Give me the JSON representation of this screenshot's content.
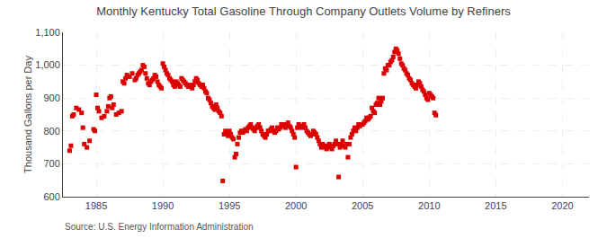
{
  "chart_data": {
    "type": "scatter",
    "title": "Monthly Kentucky Total Gasoline Through Company Outlets Volume by Refiners",
    "ylabel": "Thousand Gallons per Day",
    "annotations": [
      "Source: U.S. Energy Information Administration"
    ],
    "color": "#dd0000",
    "marker": "square",
    "grid": true,
    "xlim": [
      1982.5,
      2022
    ],
    "ylim": [
      600,
      1100
    ],
    "xticks": [
      1985,
      1990,
      1995,
      2000,
      2005,
      2010,
      2015,
      2020
    ],
    "yticks": [
      600,
      700,
      800,
      900,
      {
        "value": 1000,
        "label": "1,000"
      },
      {
        "value": 1100,
        "label": "1,100"
      }
    ],
    "x": [
      1983.0,
      1983.1,
      1983.2,
      1983.3,
      1983.5,
      1983.7,
      1983.9,
      1984.0,
      1984.1,
      1984.3,
      1984.5,
      1984.8,
      1984.9,
      1985.0,
      1985.1,
      1985.2,
      1985.4,
      1985.6,
      1985.8,
      1985.9,
      1986.0,
      1986.1,
      1986.2,
      1986.3,
      1986.5,
      1986.7,
      1986.9,
      1987.0,
      1987.1,
      1987.2,
      1987.3,
      1987.5,
      1987.7,
      1987.9,
      1988.0,
      1988.1,
      1988.2,
      1988.3,
      1988.4,
      1988.5,
      1988.6,
      1988.7,
      1988.8,
      1988.9,
      1989.0,
      1989.1,
      1989.2,
      1989.3,
      1989.4,
      1989.5,
      1989.6,
      1989.7,
      1989.8,
      1989.9,
      1990.0,
      1990.1,
      1990.2,
      1990.3,
      1990.4,
      1990.5,
      1990.6,
      1990.7,
      1990.8,
      1990.9,
      1991.0,
      1991.1,
      1991.2,
      1991.3,
      1991.4,
      1991.5,
      1991.6,
      1991.7,
      1991.8,
      1991.9,
      1992.0,
      1992.1,
      1992.2,
      1992.3,
      1992.4,
      1992.5,
      1992.6,
      1992.7,
      1992.8,
      1992.9,
      1993.0,
      1993.1,
      1993.2,
      1993.3,
      1993.4,
      1993.5,
      1993.6,
      1993.7,
      1993.8,
      1993.9,
      1994.0,
      1994.1,
      1994.2,
      1994.3,
      1994.4,
      1994.5,
      1994.6,
      1994.7,
      1994.8,
      1994.9,
      1995.0,
      1995.1,
      1995.2,
      1995.3,
      1995.4,
      1995.5,
      1995.6,
      1995.7,
      1995.8,
      1995.9,
      1996.0,
      1996.1,
      1996.2,
      1996.3,
      1996.4,
      1996.5,
      1996.6,
      1996.7,
      1996.8,
      1996.9,
      1997.0,
      1997.1,
      1997.2,
      1997.3,
      1997.4,
      1997.5,
      1997.6,
      1997.7,
      1997.8,
      1997.9,
      1998.0,
      1998.1,
      1998.2,
      1998.3,
      1998.4,
      1998.5,
      1998.6,
      1998.7,
      1998.8,
      1998.9,
      1999.0,
      1999.1,
      1999.2,
      1999.3,
      1999.4,
      1999.5,
      1999.6,
      1999.7,
      1999.8,
      1999.9,
      2000.0,
      2000.1,
      2000.2,
      2000.3,
      2000.4,
      2000.5,
      2000.6,
      2000.7,
      2000.8,
      2000.9,
      2001.0,
      2001.1,
      2001.2,
      2001.3,
      2001.4,
      2001.5,
      2001.6,
      2001.7,
      2001.8,
      2001.9,
      2002.0,
      2002.1,
      2002.2,
      2002.3,
      2002.4,
      2002.5,
      2002.6,
      2002.7,
      2002.8,
      2002.9,
      2003.0,
      2003.1,
      2003.2,
      2003.3,
      2003.4,
      2003.5,
      2003.6,
      2003.7,
      2003.8,
      2003.9,
      2004.0,
      2004.1,
      2004.2,
      2004.3,
      2004.4,
      2004.5,
      2004.6,
      2004.7,
      2004.8,
      2004.9,
      2005.0,
      2005.1,
      2005.2,
      2005.3,
      2005.4,
      2005.5,
      2005.6,
      2005.7,
      2005.8,
      2005.9,
      2006.0,
      2006.1,
      2006.2,
      2006.3,
      2006.4,
      2006.5,
      2006.6,
      2006.7,
      2006.8,
      2006.9,
      2007.0,
      2007.1,
      2007.2,
      2007.3,
      2007.4,
      2007.5,
      2007.6,
      2007.7,
      2007.8,
      2007.9,
      2008.0,
      2008.1,
      2008.2,
      2008.3,
      2008.4,
      2008.5,
      2008.6,
      2008.7,
      2008.8,
      2008.9,
      2009.0,
      2009.1,
      2009.2,
      2009.3,
      2009.4,
      2009.5,
      2009.6,
      2009.7,
      2009.8,
      2009.9,
      2010.0,
      2010.1,
      2010.2,
      2010.3,
      2010.4,
      2010.5
    ],
    "values": [
      740,
      755,
      845,
      850,
      870,
      865,
      855,
      810,
      760,
      750,
      770,
      805,
      800,
      910,
      870,
      860,
      840,
      845,
      860,
      875,
      900,
      905,
      870,
      880,
      850,
      855,
      860,
      950,
      945,
      960,
      970,
      965,
      975,
      955,
      960,
      970,
      975,
      980,
      985,
      1000,
      995,
      975,
      960,
      945,
      940,
      950,
      955,
      960,
      970,
      965,
      950,
      940,
      935,
      930,
      1005,
      995,
      985,
      975,
      970,
      960,
      955,
      950,
      940,
      935,
      950,
      945,
      940,
      935,
      960,
      955,
      950,
      945,
      940,
      935,
      940,
      935,
      930,
      940,
      950,
      960,
      955,
      945,
      940,
      935,
      940,
      930,
      920,
      915,
      900,
      895,
      885,
      875,
      870,
      865,
      880,
      870,
      860,
      855,
      845,
      648,
      790,
      800,
      795,
      785,
      800,
      790,
      780,
      775,
      720,
      730,
      760,
      780,
      795,
      800,
      795,
      800,
      805,
      800,
      810,
      815,
      820,
      810,
      805,
      800,
      810,
      815,
      820,
      810,
      800,
      790,
      785,
      780,
      790,
      800,
      800,
      805,
      810,
      800,
      795,
      800,
      810,
      805,
      810,
      820,
      820,
      815,
      810,
      820,
      825,
      815,
      810,
      800,
      790,
      780,
      690,
      810,
      820,
      815,
      810,
      815,
      820,
      810,
      800,
      795,
      790,
      785,
      790,
      800,
      795,
      790,
      780,
      770,
      760,
      750,
      760,
      755,
      750,
      745,
      755,
      760,
      750,
      745,
      755,
      760,
      770,
      760,
      660,
      750,
      760,
      770,
      755,
      750,
      760,
      720,
      760,
      780,
      790,
      800,
      810,
      800,
      810,
      820,
      815,
      820,
      820,
      825,
      830,
      840,
      835,
      840,
      845,
      870,
      860,
      855,
      880,
      885,
      900,
      880,
      890,
      900,
      975,
      990,
      985,
      1000,
      1000,
      1010,
      1015,
      1025,
      1040,
      1050,
      1045,
      1035,
      1020,
      1005,
      1000,
      990,
      985,
      975,
      970,
      960,
      955,
      945,
      940,
      935,
      930,
      940,
      950,
      945,
      935,
      925,
      920,
      910,
      900,
      895,
      915,
      910,
      905,
      900,
      855,
      848
    ]
  }
}
